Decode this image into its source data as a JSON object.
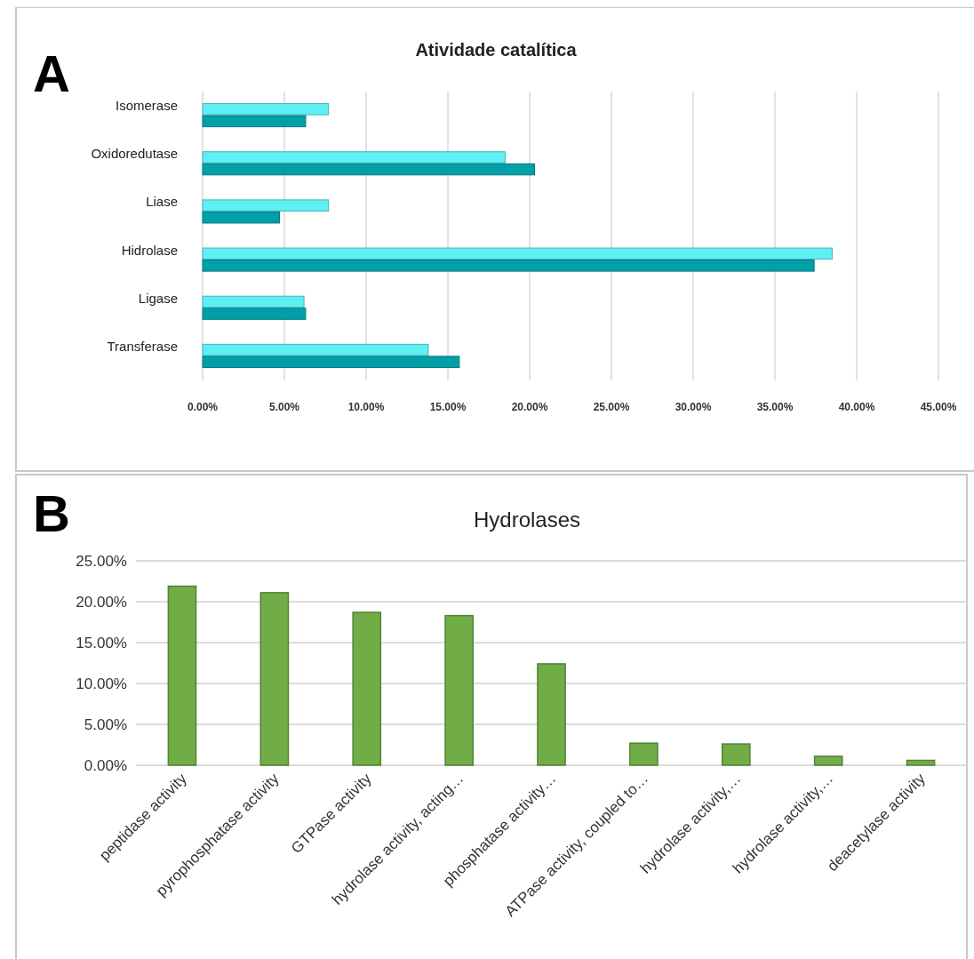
{
  "chart_data": [
    {
      "type": "bar",
      "orientation": "horizontal",
      "title": "Atividade catalítica",
      "annotations": [
        "A"
      ],
      "categories": [
        "Isomerase",
        "Oxidoredutase",
        "Liase",
        "Hidrolase",
        "Ligase",
        "Transferase"
      ],
      "series": [
        {
          "color": "#5ef0f4",
          "values": [
            7.7,
            18.5,
            7.7,
            38.5,
            6.2,
            13.8
          ]
        },
        {
          "color": "#00a0a8",
          "values": [
            6.3,
            20.3,
            4.7,
            37.4,
            6.3,
            15.7
          ]
        }
      ],
      "xlim": [
        0,
        45
      ],
      "xticks": [
        {
          "value": 0,
          "label": "0.00%"
        },
        {
          "value": 5,
          "label": "5.00%"
        },
        {
          "value": 10,
          "label": "10.00%"
        },
        {
          "value": 15,
          "label": "15.00%"
        },
        {
          "value": 20,
          "label": "20.00%"
        },
        {
          "value": 25,
          "label": "25.00%"
        },
        {
          "value": 30,
          "label": "30.00%"
        },
        {
          "value": 35,
          "label": "35.00%"
        },
        {
          "value": 40,
          "label": "40.00%"
        },
        {
          "value": 45,
          "label": "45.00%"
        }
      ],
      "grid": "x"
    },
    {
      "type": "bar",
      "title": "Hydrolases",
      "annotations": [
        "B"
      ],
      "categories": [
        "peptidase activity",
        "pyrophosphatase activity",
        "GTPase activity",
        "hydrolase activity, acting…",
        "phosphatase activity…",
        "ATPase activity, coupled to…",
        "hydrolase activity,…",
        "hydrolase activity,…",
        "deacetylase activity"
      ],
      "values": [
        21.9,
        21.1,
        18.7,
        18.3,
        12.4,
        2.7,
        2.6,
        1.1,
        0.6
      ],
      "color": "#70ad47",
      "ylim": [
        0,
        25
      ],
      "yticks": [
        {
          "value": 0,
          "label": "0.00%"
        },
        {
          "value": 5,
          "label": "5.00%"
        },
        {
          "value": 10,
          "label": "10.00%"
        },
        {
          "value": 15,
          "label": "15.00%"
        },
        {
          "value": 20,
          "label": "20.00%"
        },
        {
          "value": 25,
          "label": "25.00%"
        }
      ],
      "grid": "y"
    }
  ]
}
